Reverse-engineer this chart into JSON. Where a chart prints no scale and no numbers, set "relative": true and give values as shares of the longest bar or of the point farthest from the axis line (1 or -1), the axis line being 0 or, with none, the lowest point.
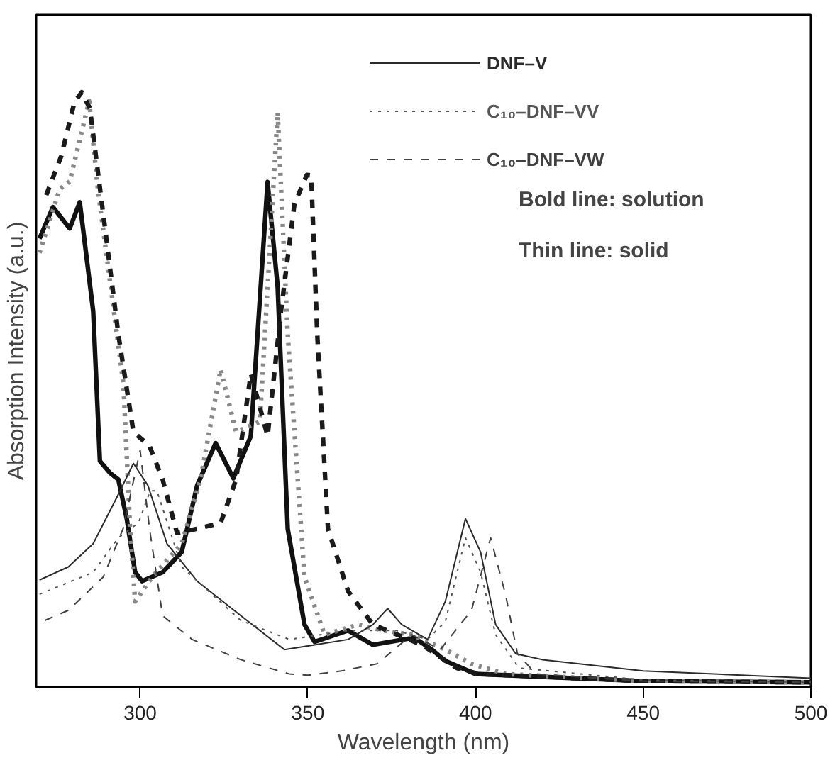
{
  "chart_data": {
    "type": "line",
    "relative": true,
    "xlabel": "Wavelength (nm)",
    "ylabel": "Absorption Intensity (a.u.)",
    "xlim": [
      269,
      500
    ],
    "xticks": [
      300,
      350,
      400,
      450,
      500
    ],
    "grid": false,
    "legend": "top right",
    "tick_labels": "x",
    "annotations": [
      "Bold line: solution",
      "Thin line: solid"
    ],
    "series": [
      {
        "color": "#111111",
        "line_style": "solid",
        "x": [
          270,
          274,
          279,
          282,
          286,
          288,
          291,
          293.5,
          296,
          298.5,
          300.6,
          306.7,
          312.4,
          317,
          322.5,
          327.8,
          333,
          338,
          341,
          344,
          349,
          352,
          362,
          369.4,
          381.7,
          387,
          391,
          400,
          450,
          500
        ],
        "values": [
          0.754,
          0.807,
          0.771,
          0.815,
          0.632,
          0.38,
          0.36,
          0.349,
          0.283,
          0.193,
          0.178,
          0.193,
          0.227,
          0.339,
          0.41,
          0.351,
          0.422,
          0.849,
          0.673,
          0.266,
          0.105,
          0.076,
          0.095,
          0.071,
          0.083,
          0.063,
          0.044,
          0.022,
          0.01,
          0.008
        ]
      },
      {
        "color": "#888888",
        "line_style": "dotted",
        "x": [
          270,
          276,
          279,
          284.8,
          287.4,
          295,
          297,
          298.5,
          303.6,
          312.4,
          318,
          324,
          328.6,
          335.7,
          341,
          344,
          349,
          355,
          365,
          372.5,
          381,
          391,
          398.8,
          409,
          450,
          500
        ],
        "values": [
          0.73,
          0.837,
          0.85,
          0.985,
          0.837,
          0.51,
          0.266,
          0.144,
          0.185,
          0.241,
          0.349,
          0.534,
          0.429,
          0.446,
          0.966,
          0.593,
          0.185,
          0.088,
          0.105,
          0.095,
          0.088,
          0.063,
          0.039,
          0.022,
          0.01,
          0.008
        ]
      },
      {
        "color": "#1a1a1a",
        "line_style": "dashed",
        "x": [
          272,
          276.5,
          280.4,
          282.6,
          285,
          289,
          293.5,
          298,
          302.8,
          306.7,
          311,
          317,
          324,
          328.6,
          333,
          338,
          342,
          346,
          349.7,
          351,
          352.8,
          356,
          362,
          369.4,
          384,
          394.4,
          401,
          450,
          500
        ],
        "values": [
          0.827,
          0.893,
          0.983,
          1.0,
          0.973,
          0.795,
          0.593,
          0.429,
          0.405,
          0.349,
          0.259,
          0.266,
          0.276,
          0.349,
          0.527,
          0.422,
          0.632,
          0.812,
          0.861,
          0.86,
          0.593,
          0.266,
          0.161,
          0.105,
          0.071,
          0.032,
          0.022,
          0.01,
          0.008
        ]
      },
      {
        "name": "DNF–V",
        "color": "#2b2b2b",
        "line_style": "solid",
        "x": [
          270,
          278.6,
          286,
          293.5,
          298,
          302.3,
          308,
          317,
          330,
          343,
          352,
          362,
          369.4,
          373.8,
          378,
          385.7,
          391,
          397,
          401.5,
          406,
          412,
          420,
          450,
          500
        ],
        "values": [
          0.18,
          0.202,
          0.241,
          0.324,
          0.376,
          0.339,
          0.241,
          0.178,
          0.12,
          0.063,
          0.071,
          0.08,
          0.105,
          0.132,
          0.105,
          0.08,
          0.144,
          0.283,
          0.227,
          0.105,
          0.056,
          0.046,
          0.027,
          0.015
        ]
      },
      {
        "name": "C₁₀–DNF–VV",
        "color": "#555555",
        "line_style": "dotted",
        "x": [
          270,
          286,
          293.5,
          299.5,
          303,
          305,
          312.4,
          330,
          344.5,
          362,
          376.5,
          385.7,
          391,
          397,
          401.5,
          406,
          413,
          450,
          500
        ],
        "values": [
          0.156,
          0.193,
          0.251,
          0.276,
          0.33,
          0.33,
          0.202,
          0.112,
          0.08,
          0.095,
          0.095,
          0.08,
          0.11,
          0.251,
          0.193,
          0.088,
          0.032,
          0.012,
          0.008
        ]
      },
      {
        "name": "C₁₀–DNF–VW",
        "color": "#404040",
        "line_style": "dashed",
        "x": [
          271.6,
          278.6,
          289,
          294.9,
          300,
          302.8,
          306.7,
          315.5,
          330,
          344.5,
          350,
          360,
          370.6,
          381,
          389.5,
          398.8,
          404.5,
          409,
          412.5,
          418,
          450,
          500
        ],
        "values": [
          0.112,
          0.129,
          0.185,
          0.266,
          0.398,
          0.266,
          0.12,
          0.08,
          0.046,
          0.022,
          0.02,
          0.027,
          0.039,
          0.088,
          0.063,
          0.129,
          0.251,
          0.154,
          0.056,
          0.022,
          0.01,
          0.008
        ]
      }
    ]
  }
}
